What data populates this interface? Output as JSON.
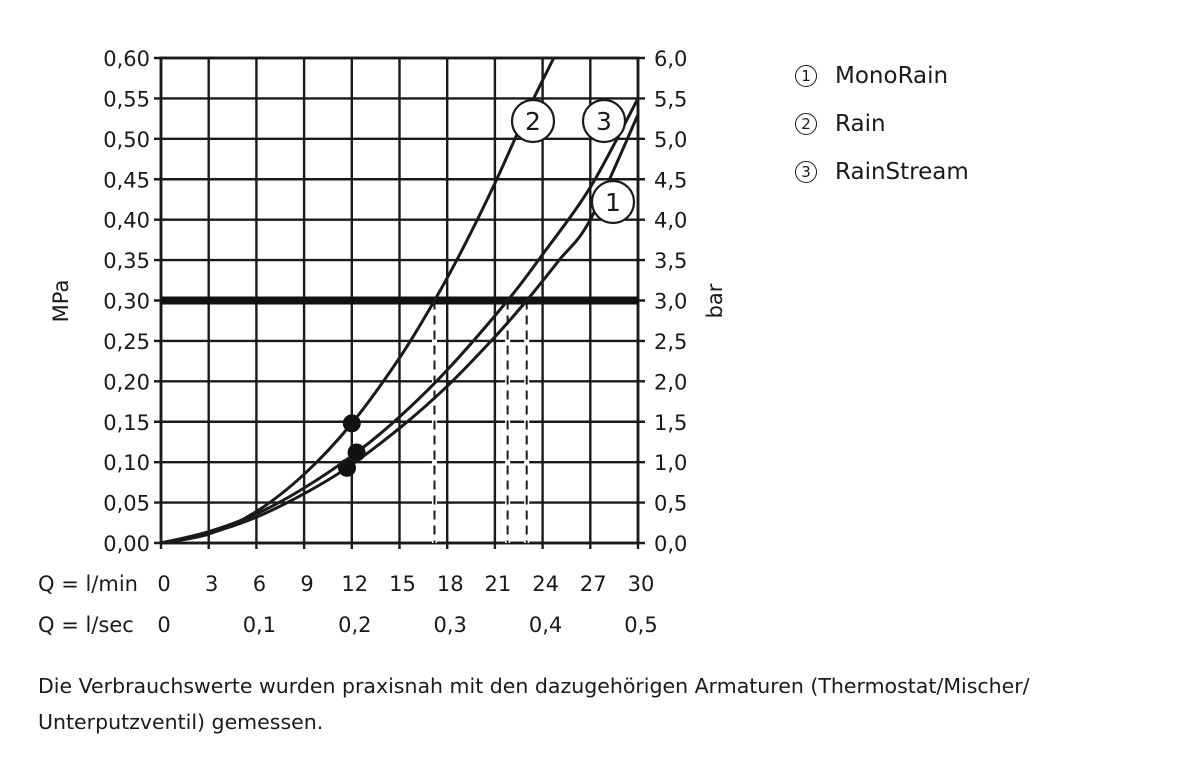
{
  "chart_data": {
    "type": "line",
    "title": "",
    "xlabel": "Q = l/min",
    "xlabel_secondary": "Q = l/sec",
    "ylabel": "MPa",
    "ylabel_secondary": "bar",
    "xlim": [
      0,
      30
    ],
    "ylim": [
      0,
      0.6
    ],
    "grid": true,
    "legend_position": "right",
    "x_ticks": [
      "0",
      "3",
      "6",
      "9",
      "12",
      "15",
      "18",
      "21",
      "24",
      "27",
      "30"
    ],
    "x_ticks_secondary": [
      "0",
      "0,1",
      "0,2",
      "0,3",
      "0,4",
      "0,5"
    ],
    "y_ticks": [
      "0,00",
      "0,05",
      "0,10",
      "0,15",
      "0,20",
      "0,25",
      "0,30",
      "0,35",
      "0,40",
      "0,45",
      "0,50",
      "0,55",
      "0,60"
    ],
    "y_ticks_secondary": [
      "0,0",
      "0,5",
      "1,0",
      "1,5",
      "2,0",
      "2,5",
      "3,0",
      "3,5",
      "4,0",
      "4,5",
      "5,0",
      "5,5",
      "6,0"
    ],
    "reference_line": {
      "y": 0.3,
      "label": "3,0 bar"
    },
    "series": [
      {
        "id": 1,
        "name": "MonoRain",
        "x": [
          0,
          3,
          6,
          9,
          11.7,
          15,
          18,
          21,
          23,
          25,
          27,
          30
        ],
        "values": [
          0,
          0.012,
          0.032,
          0.061,
          0.093,
          0.142,
          0.194,
          0.255,
          0.3,
          0.349,
          0.4,
          0.53
        ],
        "marker": {
          "x": 11.7,
          "y": 0.093
        },
        "flow_at_0_3MPa": 23
      },
      {
        "id": 2,
        "name": "Rain",
        "x": [
          0,
          3,
          6,
          9,
          12,
          15,
          17.2,
          19,
          21,
          23,
          24.7
        ],
        "values": [
          0,
          0.011,
          0.039,
          0.085,
          0.148,
          0.229,
          0.3,
          0.365,
          0.445,
          0.532,
          0.6
        ],
        "marker": {
          "x": 12,
          "y": 0.148
        },
        "flow_at_0_3MPa": 17.2
      },
      {
        "id": 3,
        "name": "RainStream",
        "x": [
          0,
          3,
          6,
          9,
          12.3,
          15,
          18,
          21.8,
          24,
          27,
          30
        ],
        "values": [
          0,
          0.014,
          0.036,
          0.068,
          0.112,
          0.156,
          0.214,
          0.3,
          0.357,
          0.44,
          0.55
        ],
        "marker": {
          "x": 12.3,
          "y": 0.112
        },
        "flow_at_0_3MPa": 21.8
      }
    ]
  },
  "legend": {
    "items": [
      {
        "num": "1",
        "label": "MonoRain"
      },
      {
        "num": "2",
        "label": "Rain"
      },
      {
        "num": "3",
        "label": "RainStream"
      }
    ]
  },
  "axis": {
    "left_unit": "MPa",
    "right_unit": "bar",
    "x_primary_label": "Q = l/min",
    "x_secondary_label": "Q = l/sec"
  },
  "curve_labels": [
    "2",
    "3",
    "1"
  ],
  "footnote": "Die Verbrauchswerte wurden praxisnah mit den dazugehörigen Armaturen (Thermostat/Mischer/ Unterputzventil) gemessen."
}
